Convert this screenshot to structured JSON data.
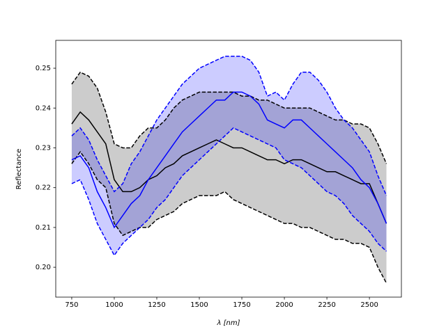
{
  "chart_data": {
    "type": "line",
    "xlabel": "λ [nm]",
    "ylabel": "Reflectance",
    "x": [
      750,
      800,
      850,
      900,
      950,
      1000,
      1050,
      1100,
      1150,
      1200,
      1250,
      1300,
      1350,
      1400,
      1450,
      1500,
      1550,
      1600,
      1650,
      1700,
      1750,
      1800,
      1850,
      1900,
      1950,
      2000,
      2050,
      2100,
      2150,
      2200,
      2250,
      2300,
      2350,
      2400,
      2450,
      2500,
      2550,
      2600
    ],
    "xlim": [
      656,
      2688
    ],
    "xticks": [
      750,
      1000,
      1250,
      1500,
      1750,
      2000,
      2250,
      2500
    ],
    "ylim": [
      0.1925,
      0.257
    ],
    "yticks": [
      {
        "value": 0.2,
        "label": "0.20"
      },
      0.21,
      0.22,
      0.23,
      0.24,
      0.25
    ],
    "grid": false,
    "fills": [
      {
        "between": [
          1,
          2
        ],
        "color": "#808080",
        "opacity": 0.4
      },
      {
        "between": [
          4,
          5
        ],
        "color": "#0000ff",
        "opacity": 0.2
      }
    ],
    "series": [
      {
        "color": "#000000",
        "linestyle": "solid",
        "values": [
          0.236,
          0.239,
          0.237,
          0.234,
          0.231,
          0.222,
          0.219,
          0.219,
          0.22,
          0.222,
          0.223,
          0.225,
          0.226,
          0.228,
          0.229,
          0.23,
          0.231,
          0.232,
          0.231,
          0.23,
          0.23,
          0.229,
          0.228,
          0.227,
          0.227,
          0.226,
          0.227,
          0.227,
          0.226,
          0.225,
          0.224,
          0.224,
          0.223,
          0.222,
          0.221,
          0.221,
          0.216,
          0.211
        ]
      },
      {
        "color": "#000000",
        "linestyle": "dashed",
        "values": [
          0.246,
          0.249,
          0.248,
          0.245,
          0.239,
          0.231,
          0.23,
          0.23,
          0.233,
          0.235,
          0.235,
          0.237,
          0.24,
          0.242,
          0.243,
          0.244,
          0.244,
          0.244,
          0.244,
          0.244,
          0.243,
          0.243,
          0.242,
          0.242,
          0.241,
          0.24,
          0.24,
          0.24,
          0.24,
          0.239,
          0.238,
          0.237,
          0.237,
          0.236,
          0.236,
          0.235,
          0.231,
          0.226
        ]
      },
      {
        "color": "#000000",
        "linestyle": "dashed",
        "values": [
          0.226,
          0.229,
          0.226,
          0.222,
          0.22,
          0.211,
          0.208,
          0.209,
          0.21,
          0.21,
          0.212,
          0.213,
          0.214,
          0.216,
          0.217,
          0.218,
          0.218,
          0.218,
          0.219,
          0.217,
          0.216,
          0.215,
          0.214,
          0.213,
          0.212,
          0.211,
          0.211,
          0.21,
          0.21,
          0.209,
          0.208,
          0.207,
          0.207,
          0.206,
          0.206,
          0.205,
          0.2,
          0.196
        ]
      },
      {
        "color": "#0000ff",
        "linestyle": "solid",
        "values": [
          0.227,
          0.228,
          0.225,
          0.219,
          0.215,
          0.21,
          0.213,
          0.216,
          0.218,
          0.222,
          0.225,
          0.228,
          0.231,
          0.234,
          0.236,
          0.238,
          0.24,
          0.242,
          0.242,
          0.244,
          0.244,
          0.243,
          0.241,
          0.237,
          0.236,
          0.235,
          0.237,
          0.237,
          0.235,
          0.233,
          0.231,
          0.229,
          0.227,
          0.225,
          0.222,
          0.22,
          0.216,
          0.211
        ]
      },
      {
        "color": "#0000ff",
        "linestyle": "dashed",
        "values": [
          0.233,
          0.235,
          0.232,
          0.227,
          0.223,
          0.219,
          0.221,
          0.226,
          0.229,
          0.233,
          0.237,
          0.24,
          0.243,
          0.246,
          0.248,
          0.25,
          0.251,
          0.252,
          0.253,
          0.253,
          0.253,
          0.252,
          0.249,
          0.243,
          0.244,
          0.242,
          0.246,
          0.249,
          0.249,
          0.247,
          0.244,
          0.24,
          0.237,
          0.235,
          0.232,
          0.229,
          0.223,
          0.218
        ]
      },
      {
        "color": "#0000ff",
        "linestyle": "dashed",
        "values": [
          0.221,
          0.222,
          0.217,
          0.211,
          0.207,
          0.203,
          0.206,
          0.208,
          0.21,
          0.212,
          0.215,
          0.217,
          0.22,
          0.223,
          0.225,
          0.227,
          0.229,
          0.231,
          0.233,
          0.235,
          0.234,
          0.233,
          0.232,
          0.231,
          0.23,
          0.227,
          0.226,
          0.225,
          0.223,
          0.221,
          0.219,
          0.218,
          0.216,
          0.213,
          0.211,
          0.209,
          0.206,
          0.204
        ]
      }
    ]
  }
}
